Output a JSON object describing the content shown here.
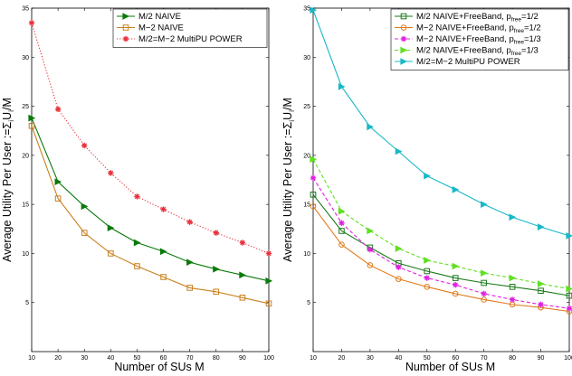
{
  "chart_data": [
    {
      "type": "line",
      "xlabel": "Number of SUs M",
      "ylabel": "Average Utility Per User :=Σ",
      "ylabel_sub": "i",
      "ylabel_tail": "U",
      "ylabel_sub2": "i",
      "ylabel_end": "/M",
      "xlim": [
        10,
        100
      ],
      "ylim": [
        0,
        35
      ],
      "xticks": [
        10,
        20,
        30,
        40,
        50,
        60,
        70,
        80,
        90,
        100
      ],
      "yticks": [
        5,
        10,
        15,
        20,
        25,
        30,
        35
      ],
      "grid": false,
      "legend_position": "top-right",
      "x": [
        10,
        20,
        30,
        40,
        50,
        60,
        70,
        80,
        90,
        100
      ],
      "series": [
        {
          "name": "M/2 NAIVE",
          "color": "#0a7a0a",
          "marker": "triangle-right",
          "dash": "solid",
          "values": [
            23.8,
            17.3,
            14.8,
            12.6,
            11.1,
            10.2,
            9.1,
            8.4,
            7.8,
            7.2
          ]
        },
        {
          "name": "M−2 NAIVE",
          "color": "#c8801e",
          "marker": "square",
          "dash": "solid",
          "values": [
            23.0,
            15.6,
            12.1,
            10.0,
            8.7,
            7.6,
            6.5,
            6.1,
            5.5,
            4.9
          ]
        },
        {
          "name": "M/2=M−2 MultiPU POWER",
          "color": "#e8303a",
          "marker": "star",
          "dash": "dotted",
          "values": [
            33.5,
            24.7,
            21.0,
            18.2,
            15.8,
            14.5,
            13.2,
            12.1,
            11.1,
            10.0
          ]
        }
      ]
    },
    {
      "type": "line",
      "xlabel": "Number of SUs M",
      "ylabel": "Average Utility Per User :=Σ",
      "ylabel_sub": "i",
      "ylabel_tail": "U",
      "ylabel_sub2": "i",
      "ylabel_end": "/M",
      "xlim": [
        10,
        100
      ],
      "ylim": [
        0,
        35
      ],
      "xticks": [
        10,
        20,
        30,
        40,
        50,
        60,
        70,
        80,
        90,
        100
      ],
      "yticks": [
        5,
        10,
        15,
        20,
        25,
        30,
        35
      ],
      "grid": false,
      "legend_position": "top-right",
      "x": [
        10,
        20,
        30,
        40,
        50,
        60,
        70,
        80,
        90,
        100
      ],
      "series": [
        {
          "name": "M/2 NAIVE+FreeBand, p",
          "name_sub": "free",
          "name_tail": "=1/2",
          "color": "#1a7a1a",
          "marker": "square",
          "dash": "solid",
          "values": [
            16.0,
            12.3,
            10.6,
            9.0,
            8.2,
            7.5,
            7.0,
            6.6,
            6.2,
            5.7
          ]
        },
        {
          "name": "M−2 NAIVE+FreeBand, p",
          "name_sub": "free",
          "name_tail": "=1/2",
          "color": "#e07a1a",
          "marker": "circle",
          "dash": "solid",
          "values": [
            14.8,
            10.9,
            8.8,
            7.4,
            6.6,
            5.9,
            5.3,
            4.8,
            4.5,
            4.1
          ]
        },
        {
          "name": "M−2 NAIVE+FreeBand, p",
          "name_sub": "free",
          "name_tail": "=1/3",
          "color": "#e020e0",
          "marker": "star",
          "dash": "dashed",
          "values": [
            17.7,
            13.1,
            10.4,
            8.6,
            7.5,
            6.8,
            5.9,
            5.3,
            4.8,
            4.4
          ]
        },
        {
          "name": "M/2 NAIVE+FreeBand, p",
          "name_sub": "free",
          "name_tail": "=1/3",
          "color": "#60e020",
          "marker": "triangle-right",
          "dash": "dashed",
          "values": [
            19.6,
            14.3,
            12.3,
            10.5,
            9.3,
            8.7,
            8.0,
            7.5,
            6.9,
            6.4
          ]
        },
        {
          "name": "M/2=M−2 MultiPU POWER",
          "color": "#18b8c8",
          "marker": "triangle-right",
          "dash": "solid",
          "values": [
            34.8,
            27.0,
            22.9,
            20.4,
            17.9,
            16.5,
            15.0,
            13.7,
            12.7,
            11.8
          ]
        }
      ]
    }
  ]
}
